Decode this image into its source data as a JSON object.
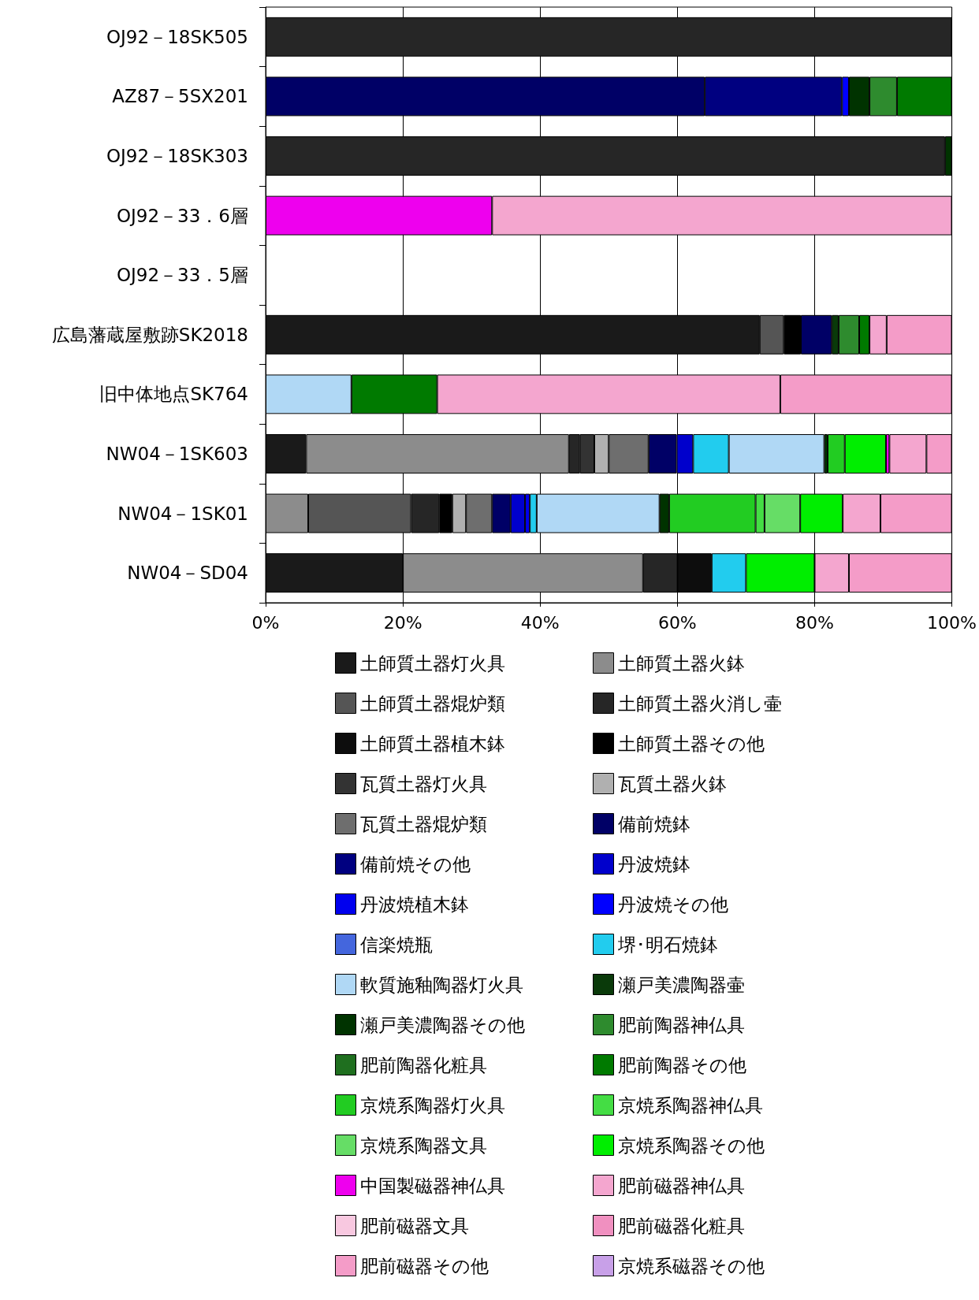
{
  "chart_data": {
    "type": "bar",
    "orientation": "horizontal",
    "stacked": true,
    "grid": "x",
    "legend": "bottom",
    "categories": [
      "OJ92－18SK505",
      "AZ87－5SX201",
      "OJ92－18SK303",
      "OJ92－33．6層",
      "OJ92－33．5層",
      "広島藩蔵屋敷跡SK2018",
      "旧中体地点SK764",
      "NW04－1SK603",
      "NW04－1SK01",
      "NW04－SD04"
    ],
    "xlim": [
      0,
      100
    ],
    "xticks": [
      {
        "value": 0,
        "label": "0%"
      },
      {
        "value": 20,
        "label": "20%"
      },
      {
        "value": 40,
        "label": "40%"
      },
      {
        "value": 60,
        "label": "60%"
      },
      {
        "value": 80,
        "label": "80%"
      },
      {
        "value": 100,
        "label": "100%"
      }
    ],
    "series": [
      {
        "name": "土師質土器灯火具",
        "color": "#1a1a1a",
        "values": [
          null,
          null,
          null,
          null,
          null,
          72,
          null,
          5.9,
          null,
          20
        ]
      },
      {
        "name": "土師質土器火鉢",
        "color": "#8c8c8c",
        "values": [
          null,
          null,
          null,
          null,
          null,
          null,
          null,
          38.3,
          6.2,
          35
        ]
      },
      {
        "name": "土師質土器焜炉類",
        "color": "#555555",
        "values": [
          null,
          null,
          null,
          null,
          null,
          3.5,
          null,
          null,
          15.0,
          null
        ]
      },
      {
        "name": "土師質土器火消し壷",
        "color": "#262626",
        "values": [
          100,
          null,
          99,
          null,
          null,
          null,
          null,
          1.6,
          4.1,
          5
        ]
      },
      {
        "name": "土師質土器植木鉢",
        "color": "#0d0d0d",
        "values": [
          null,
          null,
          null,
          null,
          null,
          null,
          null,
          null,
          null,
          5
        ]
      },
      {
        "name": "土師質土器その他",
        "color": "#000000",
        "values": [
          null,
          null,
          null,
          null,
          null,
          2.5,
          null,
          null,
          1.9,
          null
        ]
      },
      {
        "name": "瓦質土器灯火具",
        "color": "#333333",
        "values": [
          null,
          null,
          null,
          null,
          null,
          null,
          null,
          2.1,
          null,
          null
        ]
      },
      {
        "name": "瓦質土器火鉢",
        "color": "#b0b0b0",
        "values": [
          null,
          null,
          null,
          null,
          null,
          null,
          null,
          2.1,
          2.0,
          null
        ]
      },
      {
        "name": "瓦質土器焜炉類",
        "color": "#6e6e6e",
        "values": [
          null,
          null,
          null,
          null,
          null,
          null,
          null,
          5.8,
          3.8,
          null
        ]
      },
      {
        "name": "備前焼鉢",
        "color": "#000066",
        "values": [
          null,
          64,
          null,
          null,
          null,
          4.5,
          null,
          4.1,
          2.7,
          null
        ]
      },
      {
        "name": "備前焼その他",
        "color": "#000080",
        "values": [
          null,
          20,
          null,
          null,
          null,
          null,
          null,
          null,
          null,
          null
        ]
      },
      {
        "name": "丹波焼鉢",
        "color": "#0000cc",
        "values": [
          null,
          null,
          null,
          null,
          null,
          null,
          null,
          2.4,
          2.1,
          null
        ]
      },
      {
        "name": "丹波焼植木鉢",
        "color": "#0000ee",
        "values": [
          null,
          null,
          null,
          null,
          null,
          null,
          null,
          null,
          0.7,
          null
        ]
      },
      {
        "name": "丹波焼その他",
        "color": "#0000ff",
        "values": [
          null,
          1,
          null,
          null,
          null,
          null,
          null,
          null,
          null,
          null
        ]
      },
      {
        "name": "信楽焼瓶",
        "color": "#4466dd",
        "values": [
          null,
          null,
          null,
          null,
          null,
          null,
          null,
          null,
          null,
          null
        ]
      },
      {
        "name": "堺･明石焼鉢",
        "color": "#22ccee",
        "values": [
          null,
          null,
          null,
          null,
          null,
          null,
          null,
          5.2,
          1.0,
          5
        ]
      },
      {
        "name": "軟質施釉陶器灯火具",
        "color": "#b0d8f5",
        "values": [
          null,
          null,
          null,
          null,
          null,
          null,
          12.5,
          13.9,
          17.9,
          null
        ]
      },
      {
        "name": "瀬戸美濃陶器壷",
        "color": "#0a3a0a",
        "values": [
          null,
          null,
          null,
          null,
          null,
          1,
          null,
          null,
          null,
          null
        ]
      },
      {
        "name": "瀬戸美濃陶器その他",
        "color": "#003300",
        "values": [
          null,
          3,
          1,
          null,
          null,
          null,
          null,
          0.5,
          1.4,
          null
        ]
      },
      {
        "name": "肥前陶器神仏具",
        "color": "#2e8b2e",
        "values": [
          null,
          4,
          null,
          null,
          null,
          3,
          null,
          null,
          null,
          null
        ]
      },
      {
        "name": "肥前陶器化粧具",
        "color": "#1f6f1f",
        "values": [
          null,
          null,
          null,
          null,
          null,
          null,
          null,
          null,
          null,
          null
        ]
      },
      {
        "name": "肥前陶器その他",
        "color": "#007a00",
        "values": [
          null,
          8,
          null,
          null,
          null,
          1.5,
          12.5,
          null,
          null,
          null
        ]
      },
      {
        "name": "京焼系陶器灯火具",
        "color": "#22cc22",
        "values": [
          null,
          null,
          null,
          null,
          null,
          null,
          null,
          2.5,
          12.6,
          null
        ]
      },
      {
        "name": "京焼系陶器神仏具",
        "color": "#44dd44",
        "values": [
          null,
          null,
          null,
          null,
          null,
          null,
          null,
          null,
          1.3,
          null
        ]
      },
      {
        "name": "京焼系陶器文具",
        "color": "#66dd66",
        "values": [
          null,
          null,
          null,
          null,
          null,
          null,
          null,
          null,
          5.2,
          null
        ]
      },
      {
        "name": "京焼系陶器その他",
        "color": "#00ee00",
        "values": [
          null,
          null,
          null,
          null,
          null,
          null,
          null,
          6.0,
          6.2,
          10
        ]
      },
      {
        "name": "中国製磁器神仏具",
        "color": "#ee00ee",
        "values": [
          null,
          null,
          null,
          33,
          null,
          null,
          null,
          0.5,
          null,
          null
        ]
      },
      {
        "name": "肥前磁器神仏具",
        "color": "#f4a6cf",
        "values": [
          null,
          null,
          null,
          67,
          null,
          2.5,
          50,
          5.4,
          5.5,
          5
        ]
      },
      {
        "name": "肥前磁器文具",
        "color": "#f8c8e0",
        "values": [
          null,
          null,
          null,
          null,
          null,
          null,
          null,
          null,
          null,
          null
        ]
      },
      {
        "name": "肥前磁器化粧具",
        "color": "#f090c0",
        "values": [
          null,
          null,
          null,
          null,
          null,
          null,
          null,
          null,
          null,
          null
        ]
      },
      {
        "name": "肥前磁器その他",
        "color": "#f49cc8",
        "values": [
          null,
          null,
          null,
          null,
          null,
          9.5,
          25,
          3.7,
          10.4,
          15
        ]
      },
      {
        "name": "京焼系磁器その他",
        "color": "#c8a0e8",
        "values": [
          null,
          null,
          null,
          null,
          null,
          null,
          null,
          null,
          null,
          null
        ]
      }
    ]
  }
}
